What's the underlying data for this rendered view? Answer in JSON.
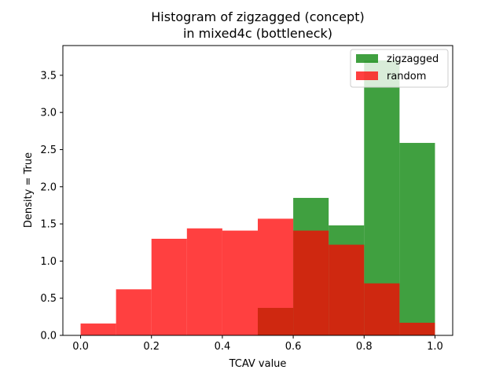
{
  "chart_data": {
    "type": "histogram",
    "title_lines": [
      "Histogram of zigzagged (concept)",
      "in mixed4c (bottleneck)"
    ],
    "xlabel": "TCAV value",
    "ylabel": "Density = True",
    "xlim": [
      -0.05,
      1.05
    ],
    "ylim": [
      0,
      3.9
    ],
    "xticks": [
      0.0,
      0.2,
      0.4,
      0.6,
      0.8,
      1.0
    ],
    "xtick_labels": [
      "0.0",
      "0.2",
      "0.4",
      "0.6",
      "0.8",
      "1.0"
    ],
    "yticks": [
      0.0,
      0.5,
      1.0,
      1.5,
      2.0,
      2.5,
      3.0,
      3.5
    ],
    "ytick_labels": [
      "0.0",
      "0.5",
      "1.0",
      "1.5",
      "2.0",
      "2.5",
      "3.0",
      "3.5"
    ],
    "grid": false,
    "legend_position": "top-right",
    "bin_edges": [
      0.0,
      0.1,
      0.2,
      0.3,
      0.4,
      0.5,
      0.6,
      0.7,
      0.8,
      0.9,
      1.0
    ],
    "series": [
      {
        "name": "zigzagged",
        "color": "#008000",
        "alpha": 0.75,
        "values": [
          0,
          0,
          0,
          0,
          0,
          0.37,
          1.85,
          1.48,
          3.7,
          2.59
        ]
      },
      {
        "name": "random",
        "color": "#ff0000",
        "alpha": 0.75,
        "values": [
          0.16,
          0.62,
          1.3,
          1.44,
          1.41,
          1.57,
          1.41,
          1.22,
          0.7,
          0.17
        ]
      }
    ]
  }
}
